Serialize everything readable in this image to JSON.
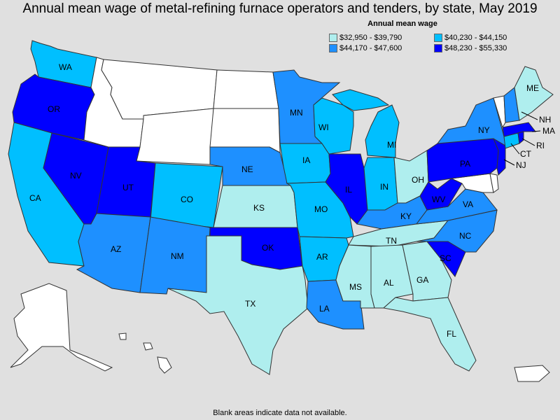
{
  "title": "Annual mean wage of metal-refining furnace operators and tenders, by state, May 2019",
  "legend": {
    "title": "Annual mean wage",
    "bins": [
      {
        "label": "$32,950 - $39,790",
        "color": "#afeeee"
      },
      {
        "label": "$40,230 - $44,150",
        "color": "#00bfff"
      },
      {
        "label": "$44,170 - $47,600",
        "color": "#1e90ff"
      },
      {
        "label": "$48,230 - $55,330",
        "color": "#0000ff"
      }
    ]
  },
  "footnote": "Blank areas indicate data not available.",
  "colors": {
    "nodata": "#ffffff",
    "bg": "#e0e0e0"
  },
  "states": {
    "WA": "$40,230 - $44,150",
    "OR": "$48,230 - $55,330",
    "CA": "$40,230 - $44,150",
    "NV": "$48,230 - $55,330",
    "UT": "$48,230 - $55,330",
    "AZ": "$44,170 - $47,600",
    "CO": "$40,230 - $44,150",
    "NM": "$44,170 - $47,600",
    "NE": "$44,170 - $47,600",
    "KS": "$32,950 - $39,790",
    "OK": "$48,230 - $55,330",
    "TX": "$32,950 - $39,790",
    "MN": "$44,170 - $47,600",
    "IA": "$40,230 - $44,150",
    "MO": "$40,230 - $44,150",
    "AR": "$40,230 - $44,150",
    "LA": "$44,170 - $47,600",
    "WI": "$40,230 - $44,150",
    "IL": "$48,230 - $55,330",
    "MI": "$40,230 - $44,150",
    "IN": "$40,230 - $44,150",
    "OH": "$32,950 - $39,790",
    "KY": "$44,170 - $47,600",
    "TN": "$32,950 - $39,790",
    "MS": "$32,950 - $39,790",
    "AL": "$32,950 - $39,790",
    "GA": "$32,950 - $39,790",
    "FL": "$32,950 - $39,790",
    "SC": "$48,230 - $55,330",
    "NC": "$44,170 - $47,600",
    "VA": "$44,170 - $47,600",
    "WV": "$48,230 - $55,330",
    "PA": "$48,230 - $55,330",
    "NY": "$44,170 - $47,600",
    "NJ": "$48,230 - $55,330",
    "CT": "$40,230 - $44,150",
    "RI": "$48,230 - $55,330",
    "MA": "$48,230 - $55,330",
    "NH": "$44,170 - $47,600",
    "ME": "$32,950 - $39,790",
    "PR": "",
    "MT": "",
    "ID": "",
    "WY": "",
    "ND": "",
    "SD": "",
    "VT": "",
    "MD": "",
    "DE": "",
    "AK": "",
    "HI": ""
  }
}
